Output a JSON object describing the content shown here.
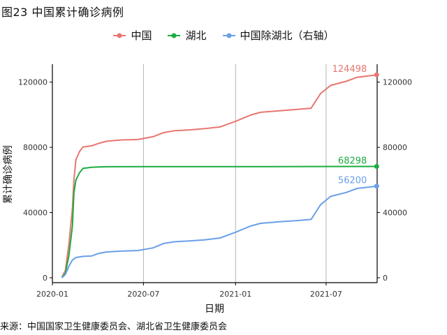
{
  "figure": {
    "title": "图23 中国累计确诊病例",
    "source": "来源：中国国家卫生健康委员会、湖北省卫生健康委员会"
  },
  "chart_data": {
    "type": "line",
    "xlabel": "日期",
    "ylabel": "累计确诊病例",
    "x_range": [
      "2020-01-01",
      "2021-10-11"
    ],
    "ylim": [
      -3000,
      131000
    ],
    "y_ticks": [
      0,
      40000,
      80000,
      120000
    ],
    "y_tick_labels": [
      "0",
      "40000",
      "80000",
      "120000"
    ],
    "x_ticks": [
      "2020-01-01",
      "2020-07-01",
      "2021-01-01",
      "2021-07-01"
    ],
    "x_tick_labels": [
      "2020-01",
      "2020-07",
      "2021-01",
      "2021-07"
    ],
    "grid": "vertical major",
    "legend_position": "top",
    "secondary_axis_label": "右轴",
    "series": [
      {
        "name": "中国",
        "color": "#e8766f",
        "end_label": "124498",
        "points": [
          [
            "2020-01-20",
            300
          ],
          [
            "2020-01-27",
            4500
          ],
          [
            "2020-02-03",
            20400
          ],
          [
            "2020-02-10",
            42600
          ],
          [
            "2020-02-13",
            60000
          ],
          [
            "2020-02-17",
            72400
          ],
          [
            "2020-02-24",
            77300
          ],
          [
            "2020-03-02",
            80200
          ],
          [
            "2020-03-20",
            81000
          ],
          [
            "2020-04-01",
            82300
          ],
          [
            "2020-04-17",
            83700
          ],
          [
            "2020-05-15",
            84500
          ],
          [
            "2020-06-20",
            84800
          ],
          [
            "2020-07-20",
            86500
          ],
          [
            "2020-08-10",
            89000
          ],
          [
            "2020-09-01",
            90200
          ],
          [
            "2020-10-01",
            90700
          ],
          [
            "2020-11-01",
            91500
          ],
          [
            "2020-12-01",
            92500
          ],
          [
            "2021-01-01",
            96000
          ],
          [
            "2021-01-31",
            99800
          ],
          [
            "2021-02-20",
            101500
          ],
          [
            "2021-04-01",
            102500
          ],
          [
            "2021-05-01",
            103200
          ],
          [
            "2021-06-01",
            104000
          ],
          [
            "2021-06-20",
            113000
          ],
          [
            "2021-07-10",
            118000
          ],
          [
            "2021-08-10",
            120500
          ],
          [
            "2021-09-01",
            123000
          ],
          [
            "2021-10-10",
            124498
          ]
        ]
      },
      {
        "name": "湖北",
        "color": "#1aad3f",
        "end_label": "68298",
        "points": [
          [
            "2020-01-20",
            270
          ],
          [
            "2020-01-27",
            2700
          ],
          [
            "2020-02-03",
            13500
          ],
          [
            "2020-02-10",
            31700
          ],
          [
            "2020-02-13",
            51900
          ],
          [
            "2020-02-17",
            60000
          ],
          [
            "2020-02-24",
            64300
          ],
          [
            "2020-03-02",
            67100
          ],
          [
            "2020-03-20",
            67800
          ],
          [
            "2020-04-17",
            68128
          ],
          [
            "2020-07-01",
            68135
          ],
          [
            "2021-01-01",
            68149
          ],
          [
            "2021-10-10",
            68298
          ]
        ]
      },
      {
        "name": "中国除湖北（右轴）",
        "color": "#6a9fe8",
        "end_label": "56200",
        "points": [
          [
            "2020-01-20",
            0
          ],
          [
            "2020-01-27",
            2000
          ],
          [
            "2020-02-03",
            7000
          ],
          [
            "2020-02-10",
            10900
          ],
          [
            "2020-02-17",
            12400
          ],
          [
            "2020-03-02",
            13100
          ],
          [
            "2020-03-20",
            13400
          ],
          [
            "2020-04-01",
            14800
          ],
          [
            "2020-04-17",
            15800
          ],
          [
            "2020-05-15",
            16300
          ],
          [
            "2020-06-20",
            16700
          ],
          [
            "2020-07-20",
            18300
          ],
          [
            "2020-08-10",
            21000
          ],
          [
            "2020-09-01",
            22100
          ],
          [
            "2020-10-01",
            22600
          ],
          [
            "2020-11-01",
            23300
          ],
          [
            "2020-12-01",
            24400
          ],
          [
            "2021-01-01",
            27900
          ],
          [
            "2021-01-31",
            31700
          ],
          [
            "2021-02-20",
            33400
          ],
          [
            "2021-04-01",
            34400
          ],
          [
            "2021-05-01",
            35000
          ],
          [
            "2021-06-01",
            35800
          ],
          [
            "2021-06-20",
            44800
          ],
          [
            "2021-07-10",
            49900
          ],
          [
            "2021-08-10",
            52300
          ],
          [
            "2021-09-01",
            54800
          ],
          [
            "2021-10-10",
            56200
          ]
        ]
      }
    ]
  }
}
